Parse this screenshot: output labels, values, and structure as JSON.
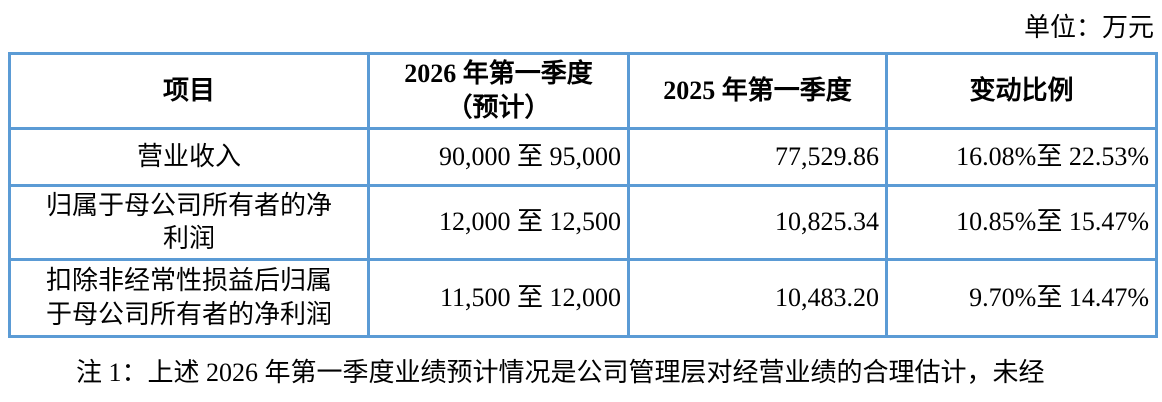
{
  "unit_label": "单位：万元",
  "table": {
    "columns": [
      "项目",
      "2026 年第一季度\n（预计）",
      "2025 年第一季度",
      "变动比例"
    ],
    "rows": [
      {
        "item": "营业收入",
        "forecast": "90,000 至 95,000",
        "prior": "77,529.86",
        "change": "16.08%至 22.53%"
      },
      {
        "item": "归属于母公司所有者的净\n利润",
        "forecast": "12,000 至 12,500",
        "prior": "10,825.34",
        "change": "10.85%至 15.47%"
      },
      {
        "item": "扣除非经常性损益后归属\n于母公司所有者的净利润",
        "forecast": "11,500 至 12,000",
        "prior": "10,483.20",
        "change": "9.70%至 14.47%"
      }
    ]
  },
  "footnote": "注 1：上述 2026 年第一季度业绩预计情况是公司管理层对经营业绩的合理估计，未经",
  "colors": {
    "table_border": "#5B9BD5",
    "text": "#000000",
    "background": "#FFFFFF"
  }
}
